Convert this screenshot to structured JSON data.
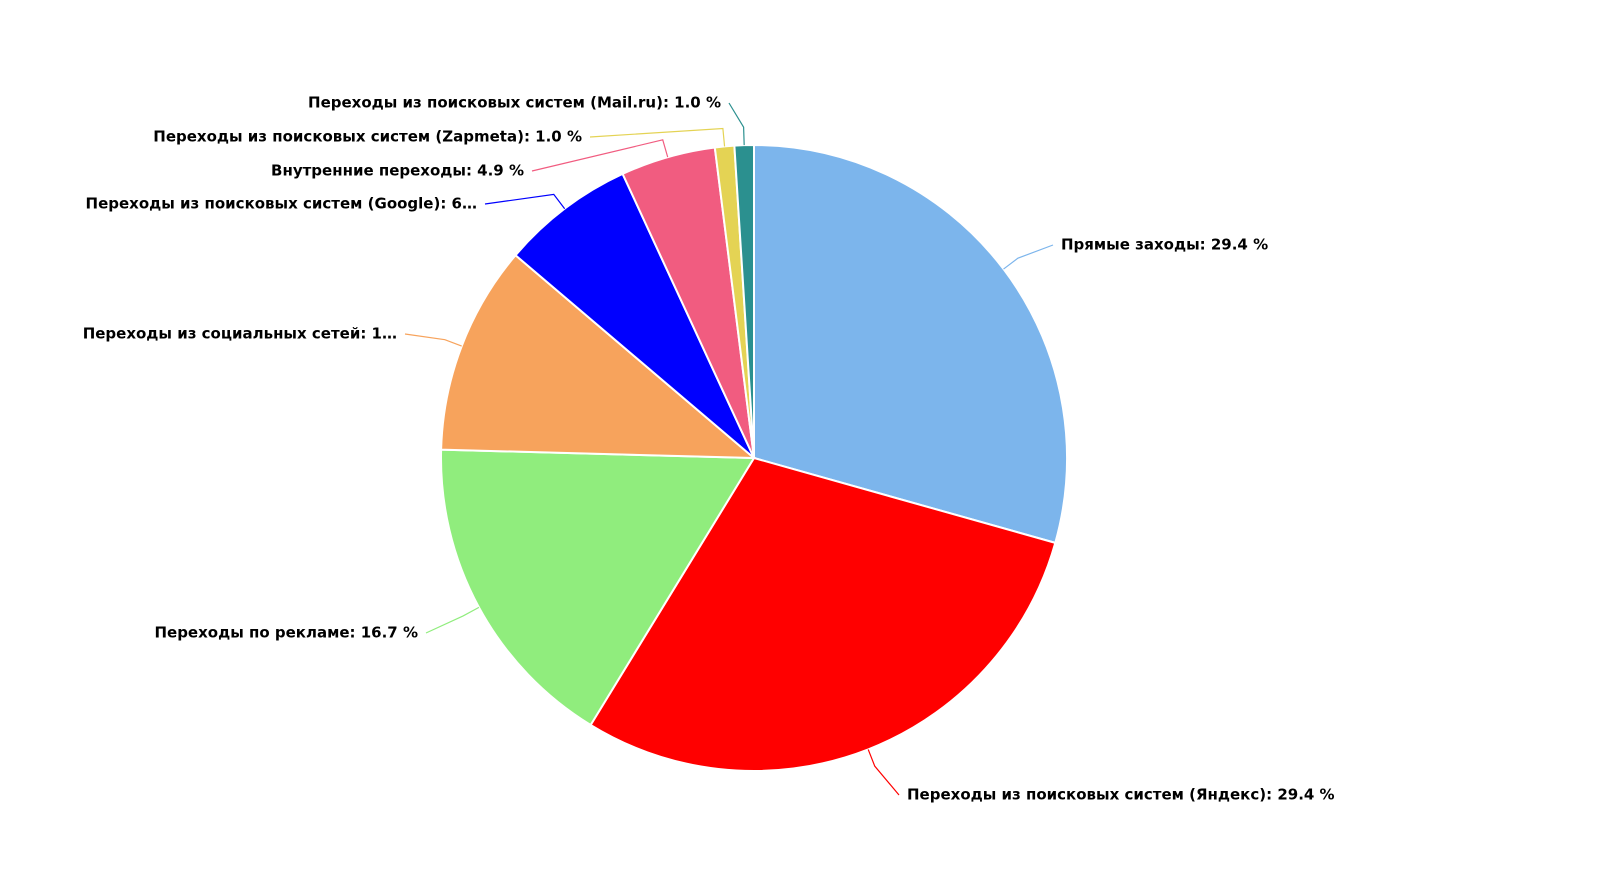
{
  "chart_data": {
    "type": "pie",
    "labels": [
      "Прямые заходы: 29.4 %",
      "Переходы из поисковых систем (Яндекс): 29.4 %",
      "Переходы по рекламе: 16.7 %",
      "Переходы из социальных сетей: 1…",
      "Переходы из поисковых систем (Google): 6…",
      "Внутренние переходы: 4.9 %",
      "Переходы из поисковых систем (Zapmeta): 1.0 %",
      "Переходы из поисковых систем (Mail.ru): 1.0 %"
    ],
    "values": [
      29.4,
      29.4,
      16.7,
      10.8,
      6.9,
      4.9,
      1.0,
      1.0
    ],
    "colors": [
      "#7cb5ec",
      "#ff0000",
      "#90ed7d",
      "#f7a35c",
      "#0000ff",
      "#f15c80",
      "#e4d354",
      "#2b908f"
    ]
  }
}
